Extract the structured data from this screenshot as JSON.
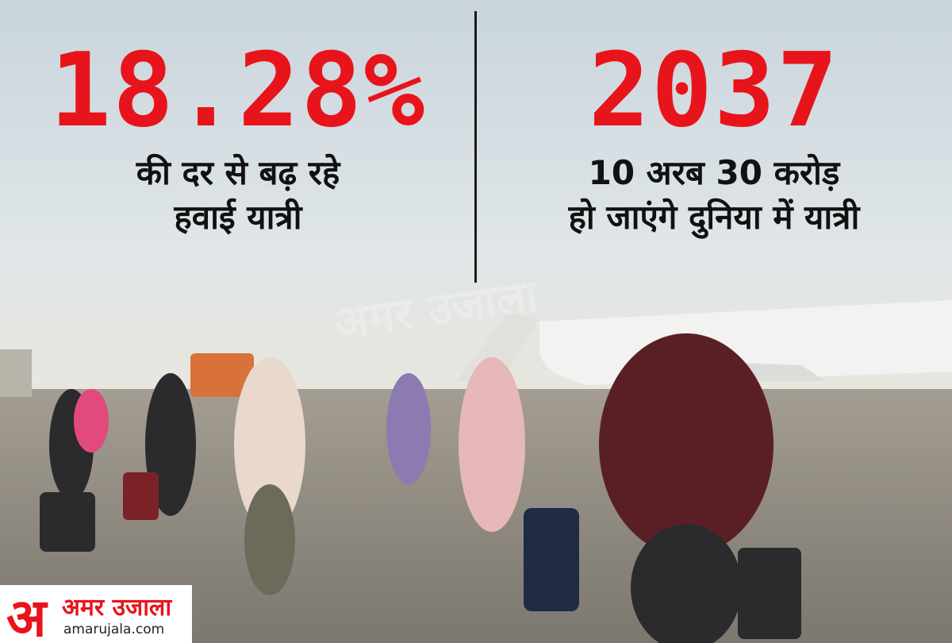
{
  "left": {
    "stat": "18.28%",
    "caption": [
      "की दर से बढ़ रहे",
      "हवाई यात्री"
    ]
  },
  "right": {
    "stat": "2037",
    "caption": [
      "10 अरब 30 करोड़",
      "हो जाएंगे दुनिया में यात्री"
    ]
  },
  "watermark": "अमर उजाला",
  "logo": {
    "mark": "अ",
    "name": "अमर उजाला",
    "url": "amarujala.com"
  }
}
